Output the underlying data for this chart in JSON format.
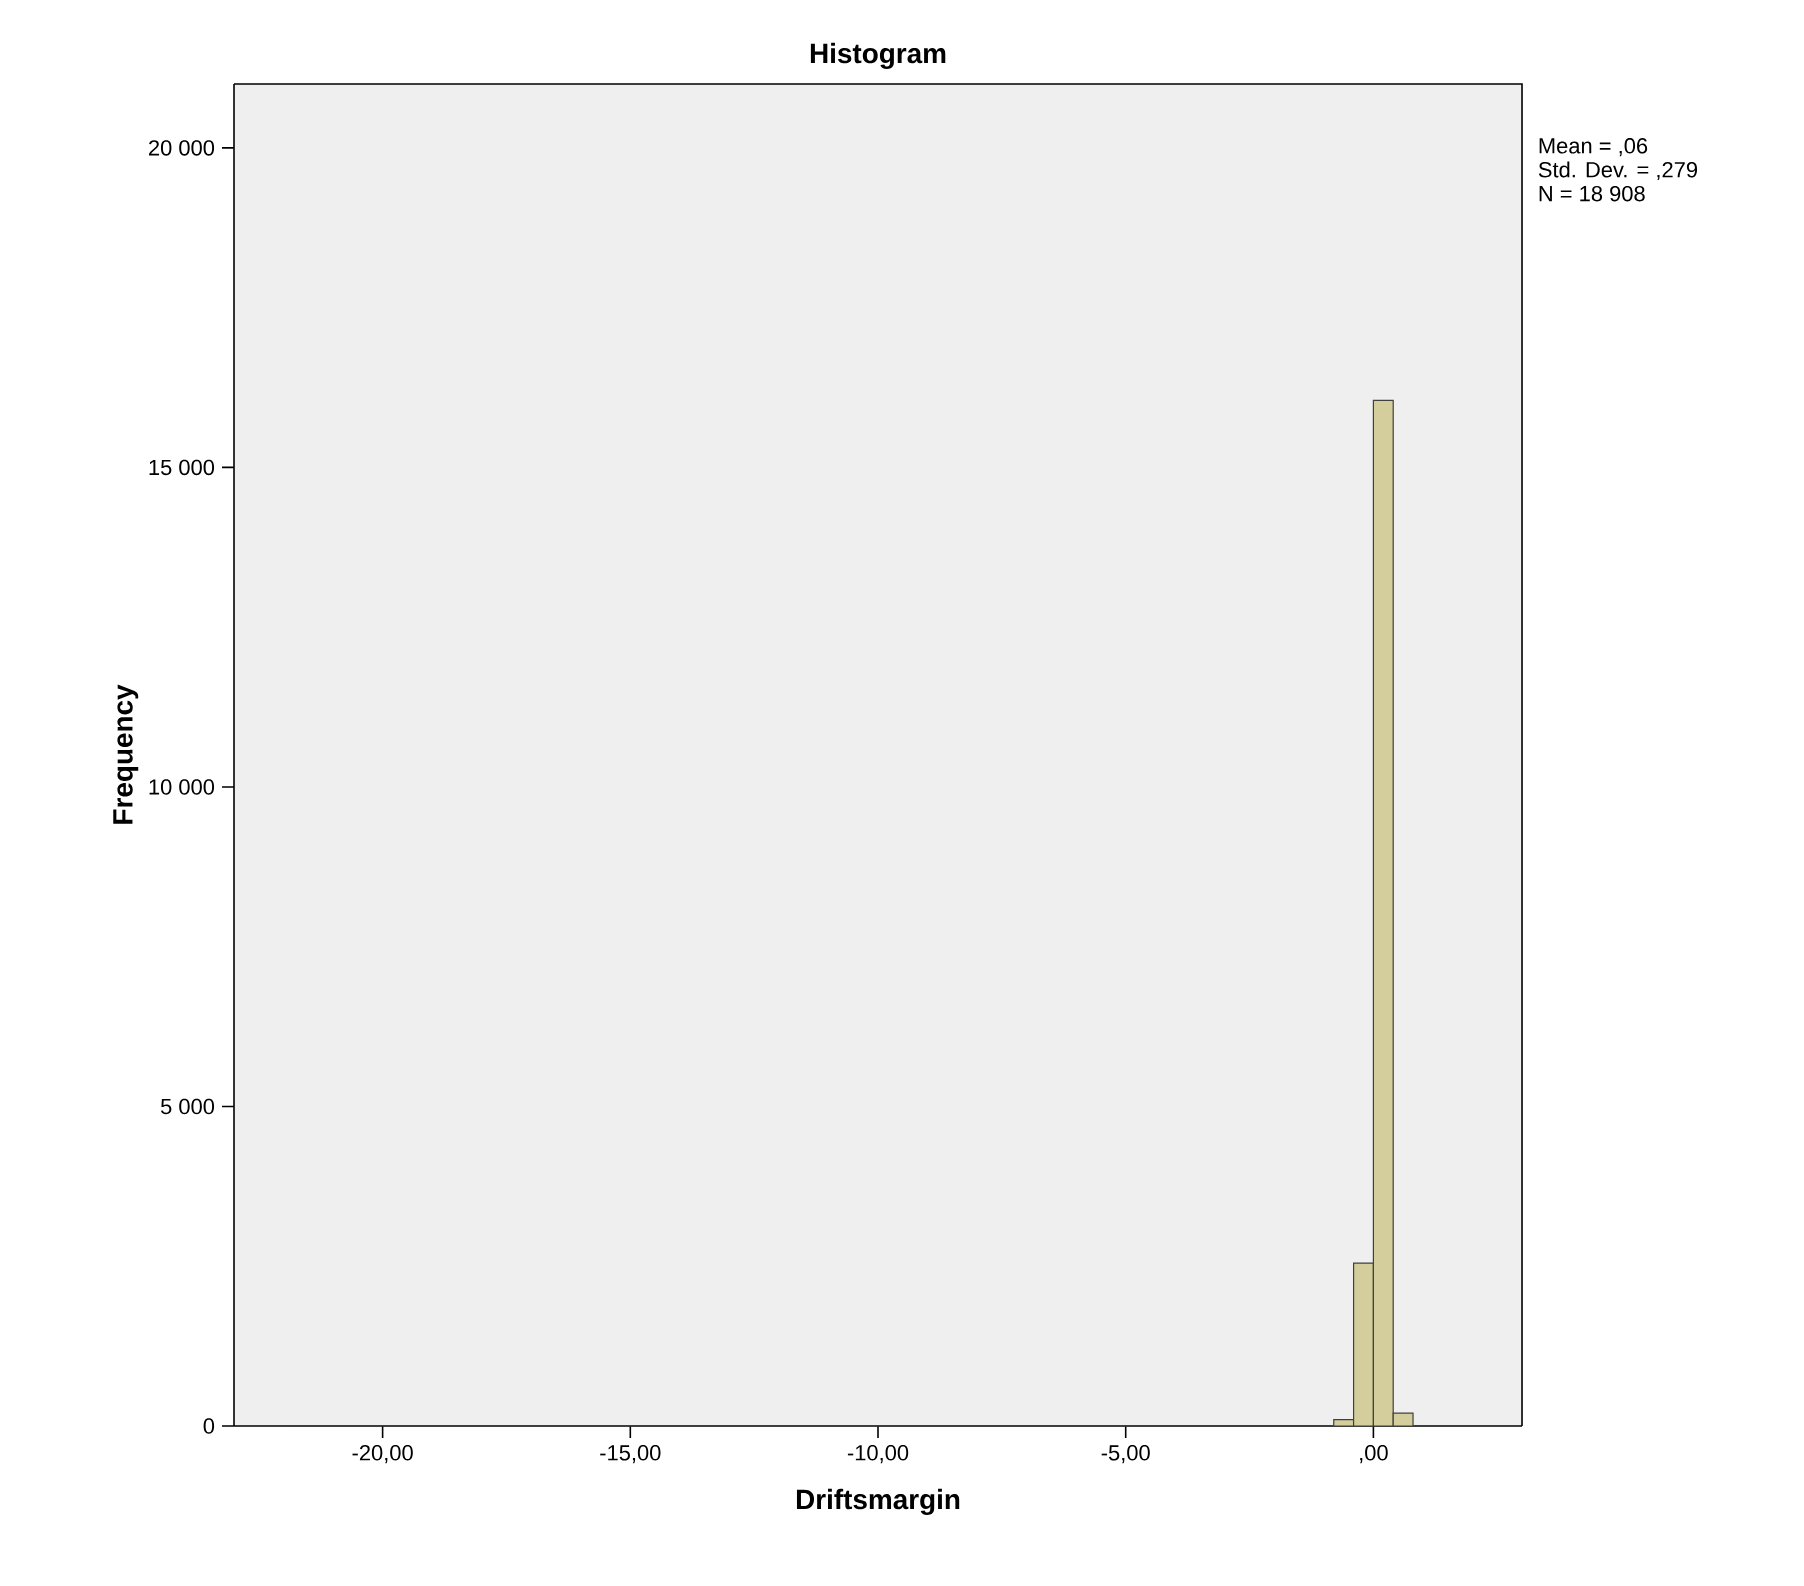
{
  "chart_data": {
    "type": "histogram",
    "title": "Histogram",
    "xlabel": "Driftsmargin",
    "ylabel": "Frequency",
    "bins": [
      -22.0,
      -21.6,
      -21.2,
      -20.8,
      -20.4,
      -20.0,
      -19.6,
      -19.2,
      -18.8,
      -18.4,
      -18.0,
      -17.6,
      -17.2,
      -16.8,
      -16.4,
      -16.0,
      -15.6,
      -15.2,
      -14.8,
      -14.4,
      -14.0,
      -13.6,
      -13.2,
      -12.8,
      -12.4,
      -12.0,
      -11.6,
      -11.2,
      -10.8,
      -10.4,
      -10.0,
      -9.6,
      -9.2,
      -8.8,
      -8.4,
      -8.0,
      -7.6,
      -7.2,
      -6.8,
      -6.4,
      -6.0,
      -5.6,
      -5.2,
      -4.8,
      -4.4,
      -4.0,
      -3.6,
      -3.2,
      -2.8,
      -2.4,
      -2.0,
      -1.6,
      -1.2,
      -0.8,
      -0.4,
      0.0,
      0.4,
      0.8,
      1.2,
      1.6,
      2.0
    ],
    "values": [
      0,
      0,
      0,
      0,
      0,
      0,
      0,
      0,
      0,
      0,
      0,
      0,
      0,
      0,
      0,
      0,
      0,
      0,
      0,
      0,
      0,
      0,
      0,
      0,
      0,
      0,
      0,
      0,
      0,
      0,
      0,
      0,
      0,
      0,
      0,
      0,
      0,
      0,
      0,
      0,
      0,
      0,
      0,
      0,
      0,
      0,
      0,
      0,
      0,
      0,
      0,
      0,
      0,
      100,
      2550,
      16050,
      200,
      0,
      0,
      0
    ],
    "color": "#d3ce9b",
    "xlim": [
      -23,
      3
    ],
    "ylim": [
      0,
      21000
    ],
    "xticks": [
      {
        "value": -20,
        "label": "-20,00"
      },
      {
        "value": -15,
        "label": "-15,00"
      },
      {
        "value": -10,
        "label": "-10,00"
      },
      {
        "value": -5,
        "label": "-5,00"
      },
      {
        "value": 0,
        "label": ",00"
      }
    ],
    "yticks": [
      {
        "value": 0,
        "label": "0"
      },
      {
        "value": 5000,
        "label": "5 000"
      },
      {
        "value": 10000,
        "label": "10 000"
      },
      {
        "value": 15000,
        "label": "15 000"
      },
      {
        "value": 20000,
        "label": "20 000"
      }
    ],
    "annotations": [
      "Mean = ,06",
      "Std. Dev. = ,279",
      "N = 18 908"
    ]
  }
}
